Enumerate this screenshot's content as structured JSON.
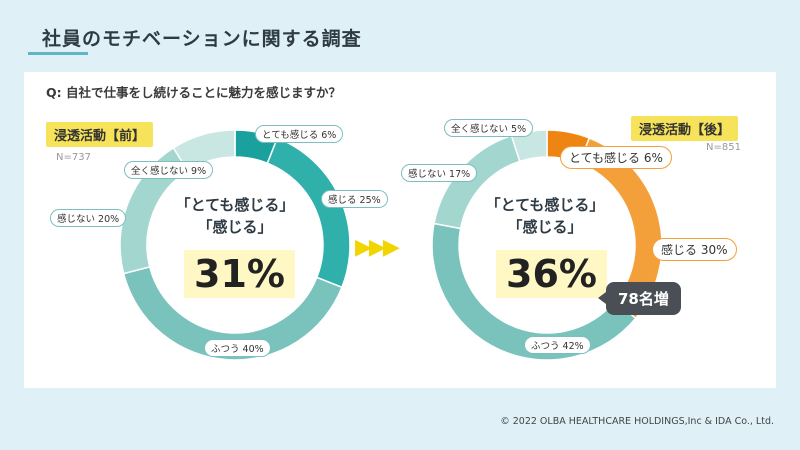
{
  "page": {
    "title": "社員のモチベーションに関する調査",
    "question": "Q: 自社で仕事をし続けることに魅力を感じますか？",
    "footer": "© 2022 OLBA HEALTHCARE HOLDINGS,Inc  & IDA Co., Ltd.",
    "arrow": "▶▶▶"
  },
  "chart_data": [
    {
      "type": "pie",
      "tag": "浸透活動【前】",
      "n_label": "N=737",
      "center_line1": "「とても感じる」",
      "center_line2": "「感じる」",
      "center_pct": "31%",
      "slices": [
        {
          "name": "とても感じる",
          "value": 6,
          "label": "とても感じる 6%",
          "color": "#1aa19d"
        },
        {
          "name": "感じる",
          "value": 25,
          "label": "感じる 25%",
          "color": "#2fb0ab"
        },
        {
          "name": "ふつう",
          "value": 40,
          "label": "ふつう 40%",
          "color": "#79c3bc"
        },
        {
          "name": "感じない",
          "value": 20,
          "label": "感じない 20%",
          "color": "#a4d6d0"
        },
        {
          "name": "全く感じない",
          "value": 9,
          "label": "全く感じない 9%",
          "color": "#c8e6e2"
        }
      ]
    },
    {
      "type": "pie",
      "tag": "浸透活動【後】",
      "n_label": "N=851",
      "center_line1": "「とても感じる」",
      "center_line2": "「感じる」",
      "center_pct": "36%",
      "increase": "78名増",
      "slices": [
        {
          "name": "とても感じる",
          "value": 6,
          "label": "とても感じる 6%",
          "color": "#ee8512"
        },
        {
          "name": "感じる",
          "value": 30,
          "label": "感じる 30%",
          "color": "#f4a03a"
        },
        {
          "name": "ふつう",
          "value": 42,
          "label": "ふつう 42%",
          "color": "#79c3bc"
        },
        {
          "name": "感じない",
          "value": 17,
          "label": "感じない 17%",
          "color": "#a4d6d0"
        },
        {
          "name": "全く感じない",
          "value": 5,
          "label": "全く感じない 5%",
          "color": "#c8e6e2"
        }
      ]
    }
  ]
}
